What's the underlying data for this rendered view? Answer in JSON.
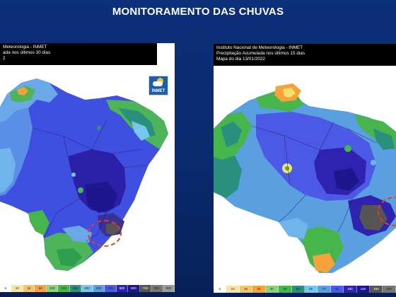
{
  "slide": {
    "title": "MONITORAMENTO DAS CHUVAS"
  },
  "left_map": {
    "header_lines": [
      "Meteorologia - INMET",
      "ada nos últimos 30 dias",
      "2"
    ],
    "logo_text": "INMET",
    "legend_ticks": [
      "5",
      "10",
      "15",
      "50",
      "100",
      "150",
      "200",
      "250",
      "300",
      "400",
      "500",
      "600",
      "700",
      "800",
      "900"
    ]
  },
  "right_map": {
    "header_lines": [
      "Instituto Nacional de Meteorologia - INMET",
      "Precipitação Acumulada nos últimos 15 dias",
      "Mapa do dia 13/01/2022"
    ],
    "legend_ticks": [
      "5",
      "10",
      "15",
      "20",
      "30",
      "40",
      "50",
      "60",
      "70",
      "80",
      "100",
      "120",
      "150",
      "200"
    ]
  },
  "colors": {
    "background": "#0b2c72",
    "dry": "#f6a23a",
    "low": "#46b64c",
    "mid": "#1f8a7a",
    "wet": "#5aa0e0",
    "very_wet": "#4c58e6",
    "heavy": "#2f22b0",
    "extreme": "#555555",
    "highlight": "#e53a25"
  },
  "icons": {
    "logo": "inmet-sun-cloud-icon"
  }
}
